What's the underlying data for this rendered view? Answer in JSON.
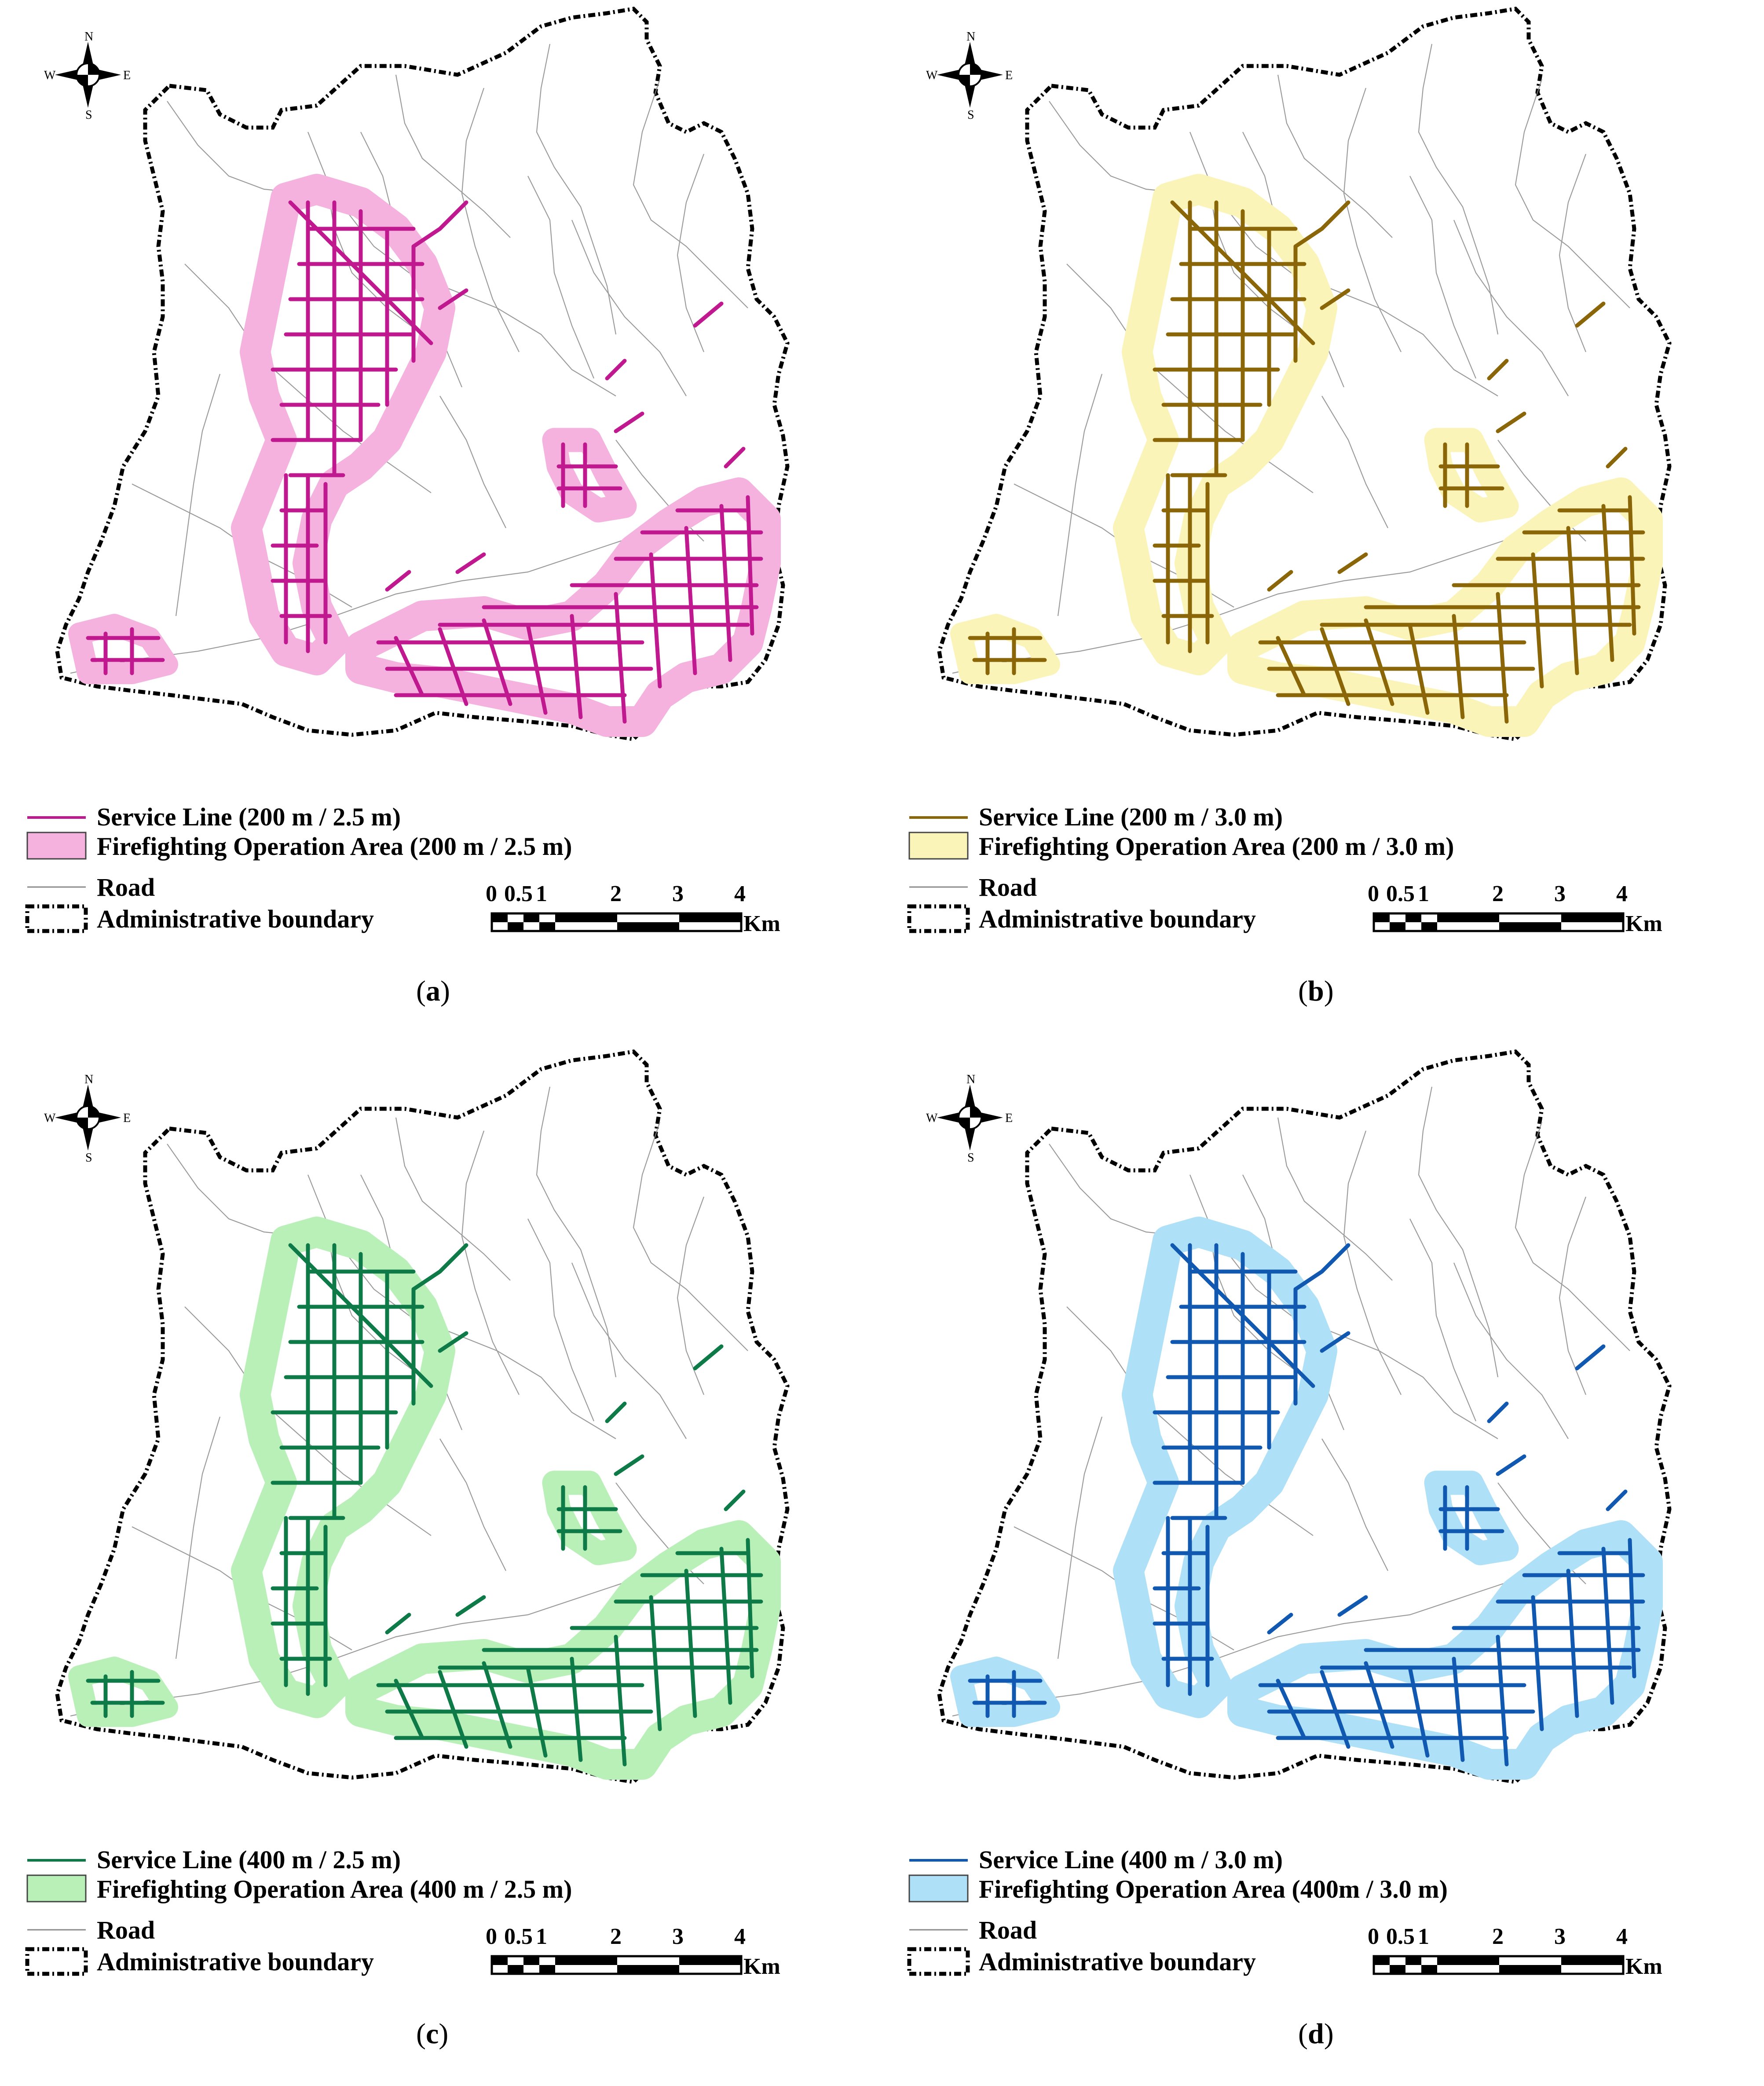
{
  "compass": {
    "n": "N",
    "s": "S",
    "e": "E",
    "w": "W"
  },
  "scale": {
    "ticks": [
      "0",
      "0.5",
      "1",
      "2",
      "3",
      "4"
    ],
    "unit": "Km"
  },
  "panels": [
    {
      "id": "a",
      "caption": "a",
      "service_color": "#c0188f",
      "area_color": "#f5b2de",
      "legend": {
        "service": "Service Line (200 m / 2.5 m)",
        "area": "Firefighting Operation Area (200 m / 2.5 m)",
        "road": "Road",
        "boundary": "Administrative boundary"
      }
    },
    {
      "id": "b",
      "caption": "b",
      "service_color": "#8a6608",
      "area_color": "#fbf4b8",
      "legend": {
        "service": "Service Line (200 m / 3.0 m)",
        "area": "Firefighting Operation Area (200 m / 3.0 m)",
        "road": "Road",
        "boundary": "Administrative boundary"
      }
    },
    {
      "id": "c",
      "caption": "c",
      "service_color": "#0e7a47",
      "area_color": "#b8f0b8",
      "legend": {
        "service": "Service Line (400 m / 2.5 m)",
        "area": "Firefighting Operation Area (400 m / 2.5 m)",
        "road": "Road",
        "boundary": "Administrative boundary"
      }
    },
    {
      "id": "d",
      "caption": "d",
      "service_color": "#1058b0",
      "area_color": "#aee0f7",
      "legend": {
        "service": "Service Line (400 m / 3.0 m)",
        "area": "Firefighting Operation Area (400m / 3.0 m)",
        "road": "Road",
        "boundary": "Administrative boundary"
      }
    }
  ]
}
